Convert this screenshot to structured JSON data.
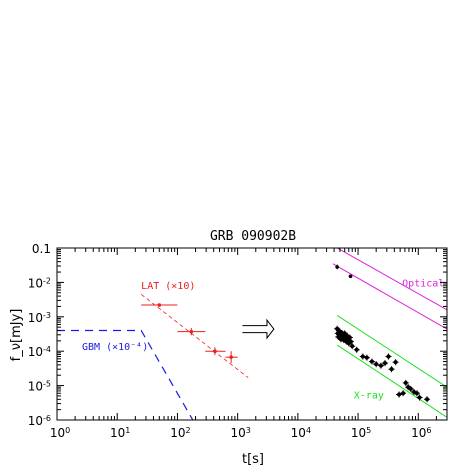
{
  "chart_data": {
    "type": "scatter",
    "title": "GRB 090902B",
    "xlabel": "t[s]",
    "ylabel": "f_ν[mJy]",
    "xscale": "log",
    "yscale": "log",
    "xlim": [
      1,
      3000000
    ],
    "ylim": [
      1e-06,
      0.1
    ],
    "grid": false,
    "x_ticks": [
      {
        "value": 1,
        "base": "10",
        "exp": "0"
      },
      {
        "value": 10,
        "base": "10",
        "exp": "1"
      },
      {
        "value": 100,
        "base": "10",
        "exp": "2"
      },
      {
        "value": 1000,
        "base": "10",
        "exp": "3"
      },
      {
        "value": 10000,
        "base": "10",
        "exp": "4"
      },
      {
        "value": 100000,
        "base": "10",
        "exp": "5"
      },
      {
        "value": 1000000,
        "base": "10",
        "exp": "6"
      }
    ],
    "y_ticks": [
      {
        "value": 1e-06,
        "base": "10",
        "exp": "-6"
      },
      {
        "value": 1e-05,
        "base": "10",
        "exp": "-5"
      },
      {
        "value": 0.0001,
        "base": "10",
        "exp": "-4"
      },
      {
        "value": 0.001,
        "base": "10",
        "exp": "-3"
      },
      {
        "value": 0.01,
        "base": "10",
        "exp": "-2"
      },
      {
        "value": 0.1,
        "base": "0.1",
        "exp": ""
      }
    ],
    "series": [
      {
        "name": "LAT (×10)",
        "color": "#e8201f",
        "label_pos": [
          25,
          0.0065
        ],
        "points": [
          {
            "x": 50,
            "y": 0.0022,
            "xlo": 25,
            "xhi": 100,
            "ylo": 0.0022,
            "yhi": 0.0022
          },
          {
            "x": 170,
            "y": 0.00037,
            "xlo": 100,
            "xhi": 290,
            "ylo": 0.00029,
            "yhi": 0.00047
          },
          {
            "x": 420,
            "y": 0.0001,
            "xlo": 290,
            "xhi": 630,
            "ylo": 7.7e-05,
            "yhi": 0.00013
          },
          {
            "x": 780,
            "y": 6.7e-05,
            "xlo": 630,
            "xhi": 1000,
            "ylo": 4.5e-05,
            "yhi": 0.0001
          }
        ]
      },
      {
        "name": "GBM (×10⁻⁴)",
        "color": "#1a1ae6",
        "label_pos": [
          2.6,
          0.00011
        ],
        "points": []
      },
      {
        "name": "Optical",
        "color": "#dd22dd",
        "label_pos": [
          540000,
          0.0075
        ],
        "points": [
          {
            "x": 45000,
            "y": 0.028,
            "xlo": 42000,
            "xhi": 48000,
            "ylo": 0.024,
            "yhi": 0.033
          },
          {
            "x": 75000,
            "y": 0.015,
            "xlo": 70000,
            "xhi": 80000,
            "ylo": 0.014,
            "yhi": 0.016
          }
        ]
      },
      {
        "name": "X-ray",
        "color": "#1ee11e",
        "label_pos": [
          85000,
          4.2e-06
        ],
        "points": [
          {
            "x": 45000,
            "y": 0.00045
          },
          {
            "x": 46000,
            "y": 0.00033
          },
          {
            "x": 47000,
            "y": 0.00026
          },
          {
            "x": 48000,
            "y": 0.0004
          },
          {
            "x": 50000,
            "y": 0.00036
          },
          {
            "x": 51000,
            "y": 0.00029
          },
          {
            "x": 52000,
            "y": 0.00022
          },
          {
            "x": 54000,
            "y": 0.00034
          },
          {
            "x": 56000,
            "y": 0.00027
          },
          {
            "x": 58000,
            "y": 0.00021
          },
          {
            "x": 60000,
            "y": 0.00033
          },
          {
            "x": 62000,
            "y": 0.00025
          },
          {
            "x": 64000,
            "y": 0.00019
          },
          {
            "x": 66000,
            "y": 0.00028
          },
          {
            "x": 68000,
            "y": 0.00023
          },
          {
            "x": 70000,
            "y": 0.00017
          },
          {
            "x": 73000,
            "y": 0.00025
          },
          {
            "x": 76000,
            "y": 0.00019
          },
          {
            "x": 80000,
            "y": 0.00014
          },
          {
            "x": 95000,
            "y": 0.00011
          },
          {
            "x": 120000,
            "y": 7e-05
          },
          {
            "x": 140000,
            "y": 6.5e-05
          },
          {
            "x": 170000,
            "y": 5e-05
          },
          {
            "x": 200000,
            "y": 4.2e-05
          },
          {
            "x": 240000,
            "y": 3.8e-05
          },
          {
            "x": 280000,
            "y": 4.5e-05
          },
          {
            "x": 320000,
            "y": 7e-05
          },
          {
            "x": 360000,
            "y": 3e-05
          },
          {
            "x": 420000,
            "y": 4.8e-05
          },
          {
            "x": 480000,
            "y": 5.5e-06
          },
          {
            "x": 560000,
            "y": 6e-06
          },
          {
            "x": 620000,
            "y": 1.2e-05
          },
          {
            "x": 680000,
            "y": 9e-06
          },
          {
            "x": 750000,
            "y": 8e-06
          },
          {
            "x": 850000,
            "y": 6.5e-06
          },
          {
            "x": 950000,
            "y": 6e-06
          },
          {
            "x": 1050000,
            "y": 4.5e-06
          },
          {
            "x": 1400000,
            "y": 4e-06
          }
        ]
      }
    ],
    "lines": [
      {
        "name": "lat-trend-line",
        "color": "#e8201f",
        "dash": "4 3",
        "width": 0.8,
        "points": [
          [
            25,
            0.0045
          ],
          [
            1500,
            1.7e-05
          ]
        ]
      },
      {
        "name": "gbm-model-line",
        "color": "#1a1ae6",
        "dash": "8 6",
        "width": 1.2,
        "points": [
          [
            1,
            0.0004
          ],
          [
            25,
            0.0004
          ],
          [
            180,
            1e-06
          ]
        ]
      },
      {
        "name": "optical-upper-line",
        "color": "#dd22dd",
        "dash": "",
        "width": 1,
        "points": [
          [
            45000,
            0.1
          ],
          [
            3000000,
            0.0016
          ]
        ]
      },
      {
        "name": "optical-lower-line",
        "color": "#dd22dd",
        "dash": "",
        "width": 1,
        "points": [
          [
            38000,
            0.035
          ],
          [
            3000000,
            0.00044
          ]
        ]
      },
      {
        "name": "xray-upper-line",
        "color": "#1ee11e",
        "dash": "",
        "width": 1,
        "points": [
          [
            45000,
            0.0011
          ],
          [
            3000000,
            9e-06
          ]
        ]
      },
      {
        "name": "xray-lower-line",
        "color": "#1ee11e",
        "dash": "",
        "width": 1,
        "points": [
          [
            45000,
            0.00015
          ],
          [
            3000000,
            1.2e-06
          ]
        ]
      }
    ],
    "arrow": {
      "from": [
        1200,
        0.00044
      ],
      "to": [
        4000,
        0.00044
      ],
      "color": "#000000"
    }
  }
}
